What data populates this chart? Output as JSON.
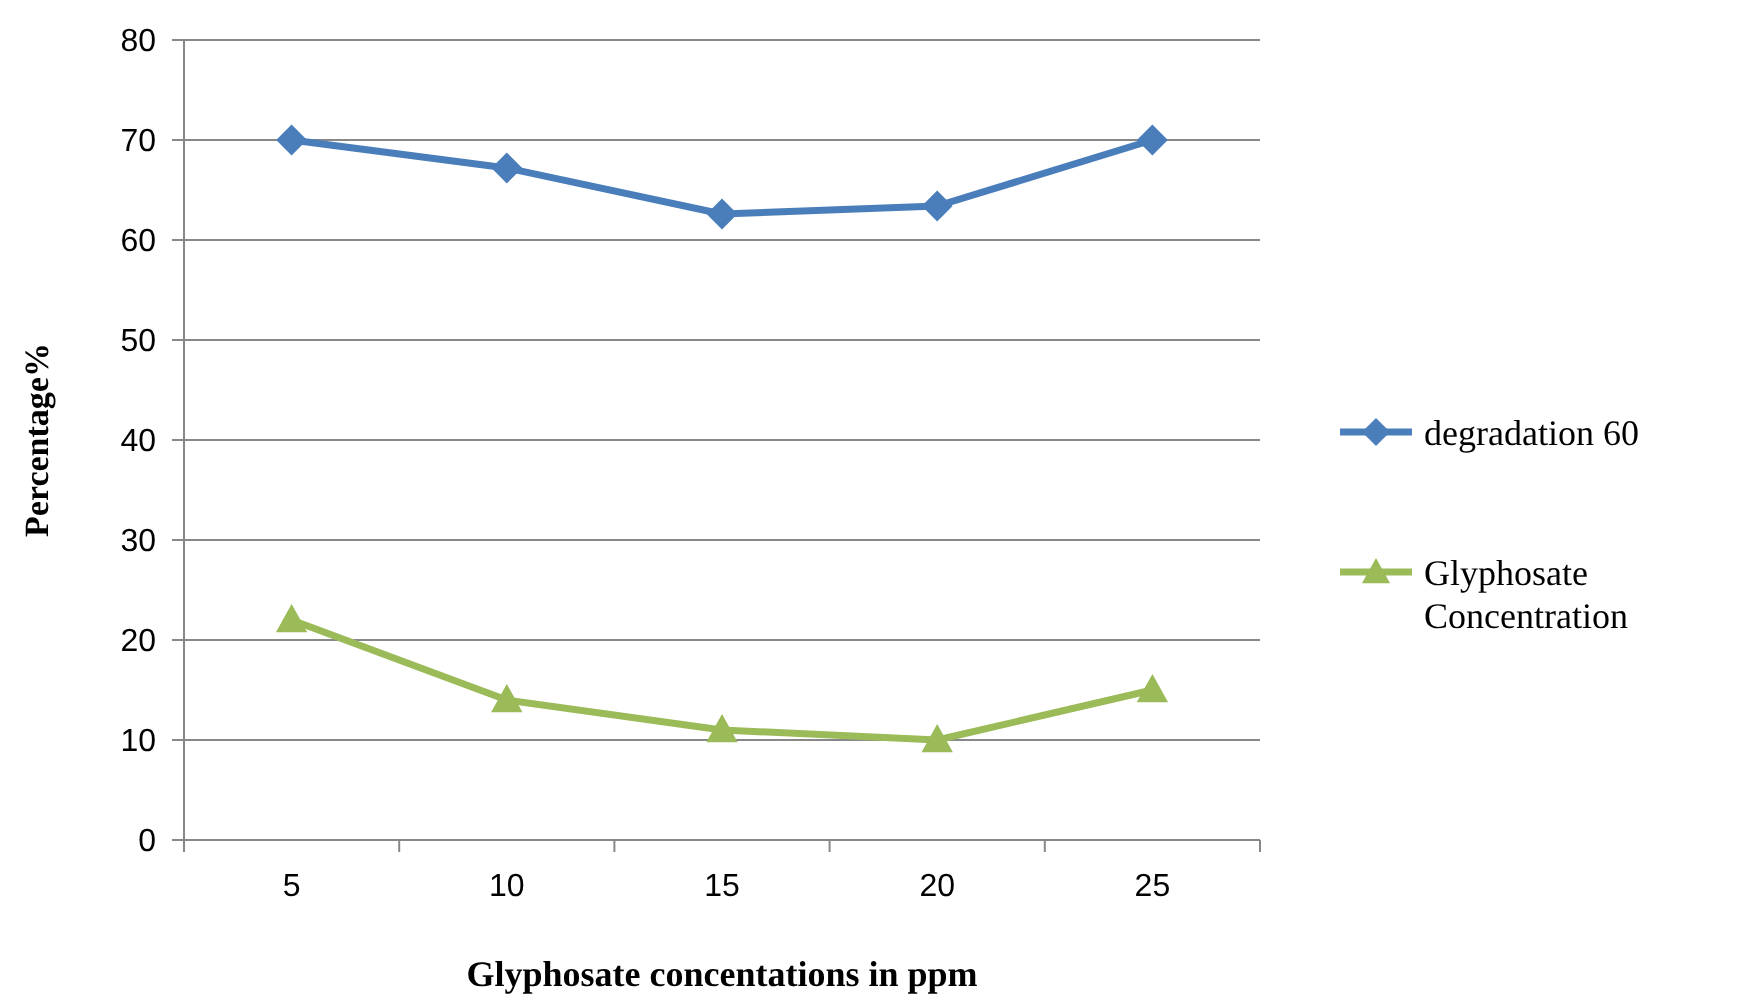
{
  "chart_data": {
    "type": "line",
    "xlabel": "Glyphosate concentations in ppm",
    "ylabel": "Percentage%",
    "categories": [
      "5",
      "10",
      "15",
      "20",
      "25"
    ],
    "series": [
      {
        "name": "degradation 60",
        "color": "#4a7ebb",
        "marker": "diamond",
        "values": [
          70,
          67.2,
          62.6,
          63.4,
          70
        ]
      },
      {
        "name": "Glyphosate Concentration",
        "color": "#9bbb59",
        "marker": "triangle",
        "values": [
          22,
          14,
          11,
          10,
          15
        ]
      }
    ],
    "ylim": [
      0,
      80
    ],
    "yticks": [
      0,
      10,
      20,
      30,
      40,
      50,
      60,
      70,
      80
    ],
    "grid": "y",
    "legend": "right",
    "line_style": "solid"
  }
}
